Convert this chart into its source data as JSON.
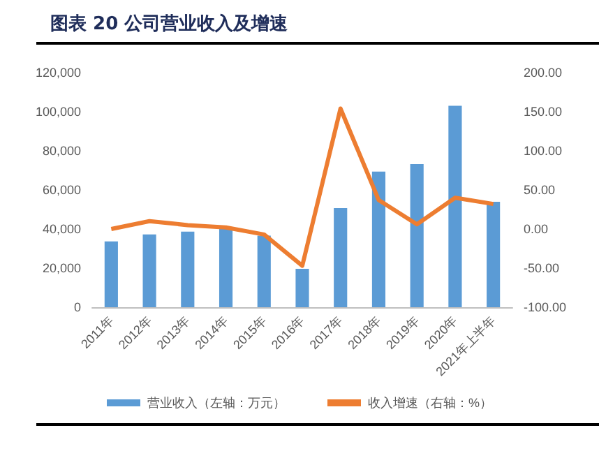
{
  "chart_data": {
    "type": "bar",
    "title": "图表 20 公司营业收入及增速",
    "categories": [
      "2011年",
      "2012年",
      "2013年",
      "2014年",
      "2015年",
      "2016年",
      "2017年",
      "2018年",
      "2019年",
      "2020年",
      "2021年上半年"
    ],
    "series": [
      {
        "name": "营业收入（左轴：万元）",
        "color": "#5b9bd5",
        "values": [
          33700,
          37200,
          38700,
          40100,
          36600,
          19600,
          50700,
          69400,
          73200,
          103000,
          53900
        ]
      },
      {
        "name": "收入增速（右轴：%）",
        "type": "line",
        "axis": "y2",
        "color": "#ed7d31",
        "values": [
          0,
          10,
          5,
          2,
          -7,
          -47,
          154,
          37,
          6,
          40,
          32
        ]
      }
    ],
    "ylim": [
      0,
      120000
    ],
    "yticks": [
      {
        "value": 0,
        "label": "0"
      },
      {
        "value": 20000,
        "label": "20,000"
      },
      {
        "value": 40000,
        "label": "40,000"
      },
      {
        "value": 60000,
        "label": "60,000"
      },
      {
        "value": 80000,
        "label": "80,000"
      },
      {
        "value": 100000,
        "label": "100,000"
      },
      {
        "value": 120000,
        "label": "120,000"
      }
    ],
    "y2lim": [
      -100,
      200
    ],
    "y2ticks": [
      {
        "value": -100,
        "label": "-100.00"
      },
      {
        "value": -50,
        "label": "-50.00"
      },
      {
        "value": 0,
        "label": "0.00"
      },
      {
        "value": 50,
        "label": "50.00"
      },
      {
        "value": 100,
        "label": "100.00"
      },
      {
        "value": 150,
        "label": "150.00"
      },
      {
        "value": 200,
        "label": "200.00"
      }
    ],
    "grid": false,
    "legend": "bottom",
    "marker": "none"
  }
}
